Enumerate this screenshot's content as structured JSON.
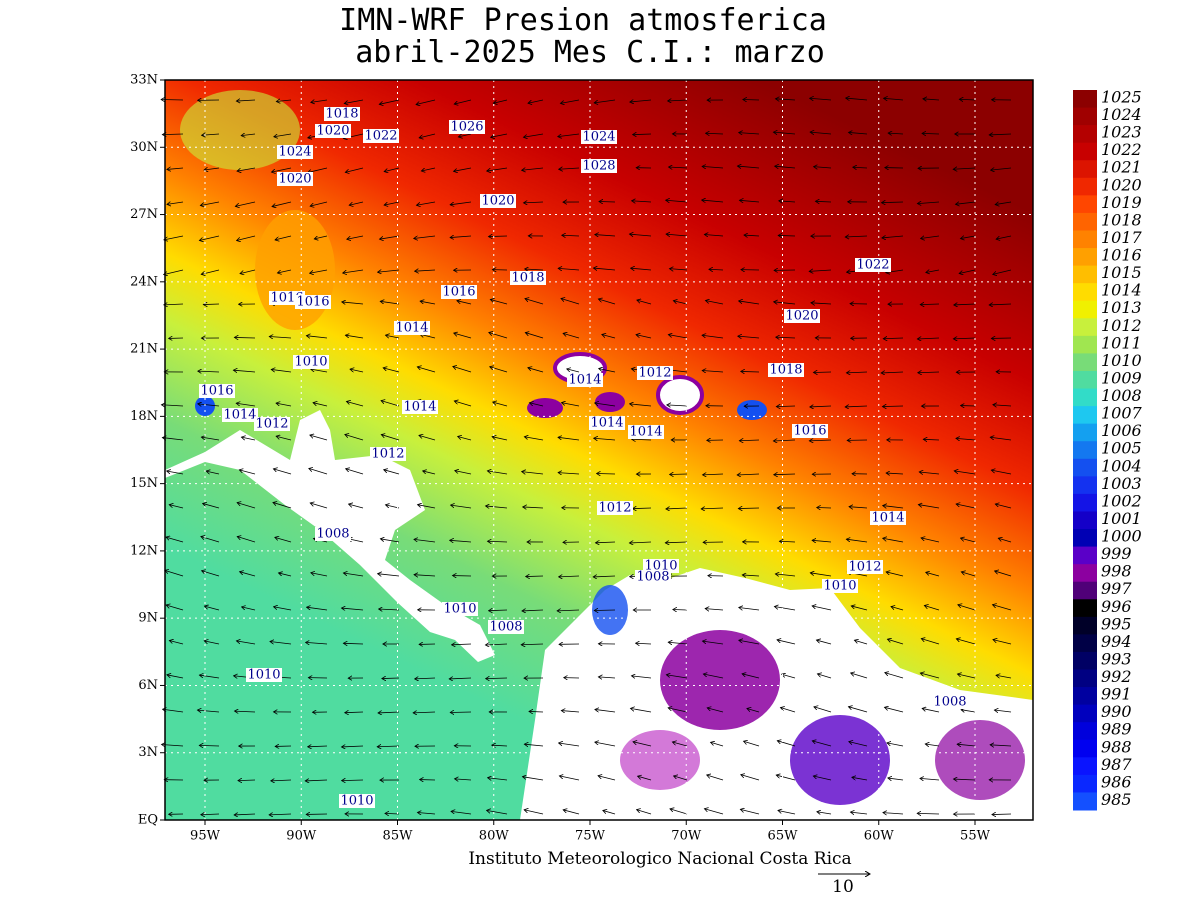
{
  "title": [
    "IMN-WRF  Presion atmosferica",
    " abril-2025 Mes C.I.: marzo"
  ],
  "lat_ticks": [
    "33N",
    "30N",
    "27N",
    "24N",
    "21N",
    "18N",
    "15N",
    "12N",
    "9N",
    "6N",
    "3N",
    "EQ"
  ],
  "lon_ticks": [
    "95W",
    "90W",
    "85W",
    "80W",
    "75W",
    "70W",
    "65W",
    "60W",
    "55W"
  ],
  "contour_labels": [
    "1018",
    "1020",
    "1022",
    "1026",
    "1024",
    "1028",
    "1024",
    "1020",
    "1020",
    "1018",
    "1022",
    "1016",
    "1016",
    "1016",
    "1014",
    "1020",
    "1010",
    "1018",
    "1016",
    "1014",
    "1012",
    "1014",
    "1014",
    "1012",
    "1014",
    "1014",
    "1016",
    "1012",
    "1012",
    "1014",
    "1008",
    "1010",
    "1008",
    "1012",
    "1010",
    "1010",
    "1008",
    "1010",
    "1008",
    "1010"
  ],
  "colorbar": {
    "levels": [
      1025,
      1024,
      1023,
      1022,
      1021,
      1020,
      1019,
      1018,
      1017,
      1016,
      1015,
      1014,
      1013,
      1012,
      1011,
      1010,
      1009,
      1008,
      1007,
      1006,
      1005,
      1004,
      1003,
      1002,
      1001,
      1000,
      999,
      998,
      997,
      996,
      995,
      994,
      993,
      992,
      991,
      990,
      989,
      988,
      987,
      986,
      985
    ],
    "colors": [
      "#8c0000",
      "#a00000",
      "#b40000",
      "#c80000",
      "#dc1400",
      "#f02800",
      "#ff4600",
      "#ff6400",
      "#ff8200",
      "#ffa000",
      "#ffbe00",
      "#ffdc00",
      "#f0f000",
      "#c8f03c",
      "#a0e650",
      "#78dc78",
      "#50dca0",
      "#32dcc8",
      "#1ec8f0",
      "#14a0f0",
      "#1478f0",
      "#1450f0",
      "#1432f0",
      "#1414e6",
      "#1400c8",
      "#0000b4",
      "#5a00c8",
      "#8c00a0",
      "#500078",
      "#000000",
      "#000028",
      "#000046",
      "#000064",
      "#000082",
      "#0000a0",
      "#0000be",
      "#0000dc",
      "#0000f0",
      "#0a14ff",
      "#0a28ff",
      "#1450ff"
    ]
  },
  "footer": "Instituto Meteorologico Nacional Costa Rica",
  "vector_scale": "10"
}
